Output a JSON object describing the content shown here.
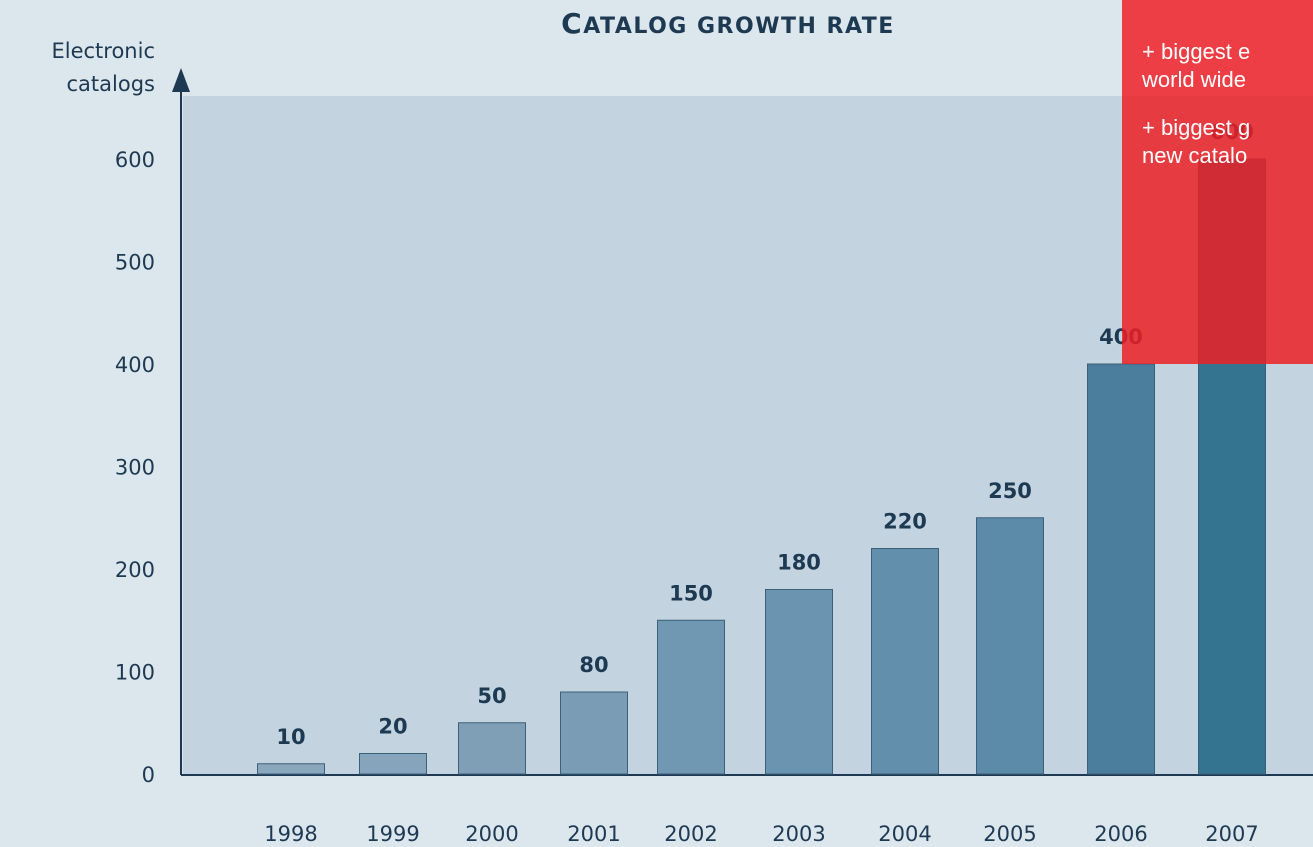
{
  "chart_data": {
    "type": "bar",
    "title": "Catalog growth rate",
    "ylabel": "Electronic catalogs",
    "ylabel_lines": [
      "Electronic",
      "catalogs"
    ],
    "categories": [
      "1998",
      "1999",
      "2000",
      "2001",
      "2002",
      "2003",
      "2004",
      "2005",
      "2006",
      "2007"
    ],
    "values": [
      10,
      20,
      50,
      80,
      150,
      180,
      220,
      250,
      400,
      600
    ],
    "data_labels": [
      "10",
      "20",
      "50",
      "80",
      "150",
      "180",
      "220",
      "250",
      "400",
      "600"
    ],
    "yticks": [
      0,
      100,
      200,
      300,
      400,
      500,
      600
    ],
    "ylim": [
      0,
      670
    ],
    "grid": false,
    "legend": "none",
    "colors": {
      "bars": [
        "#8aa7bd",
        "#86a4bb",
        "#7f9fb7",
        "#7a9cb5",
        "#7198b2",
        "#6a94af",
        "#6290ac",
        "#5b8ba9",
        "#4a7e9c",
        "#357490"
      ],
      "plot_area": "#c3d4e0",
      "background": "#dce6ed",
      "axis": "#1d3a52",
      "callout": "#ee1e24"
    }
  },
  "callout": {
    "lines": [
      "+ biggest e\nworld wide",
      "+ biggest g\nnew catalo"
    ]
  }
}
